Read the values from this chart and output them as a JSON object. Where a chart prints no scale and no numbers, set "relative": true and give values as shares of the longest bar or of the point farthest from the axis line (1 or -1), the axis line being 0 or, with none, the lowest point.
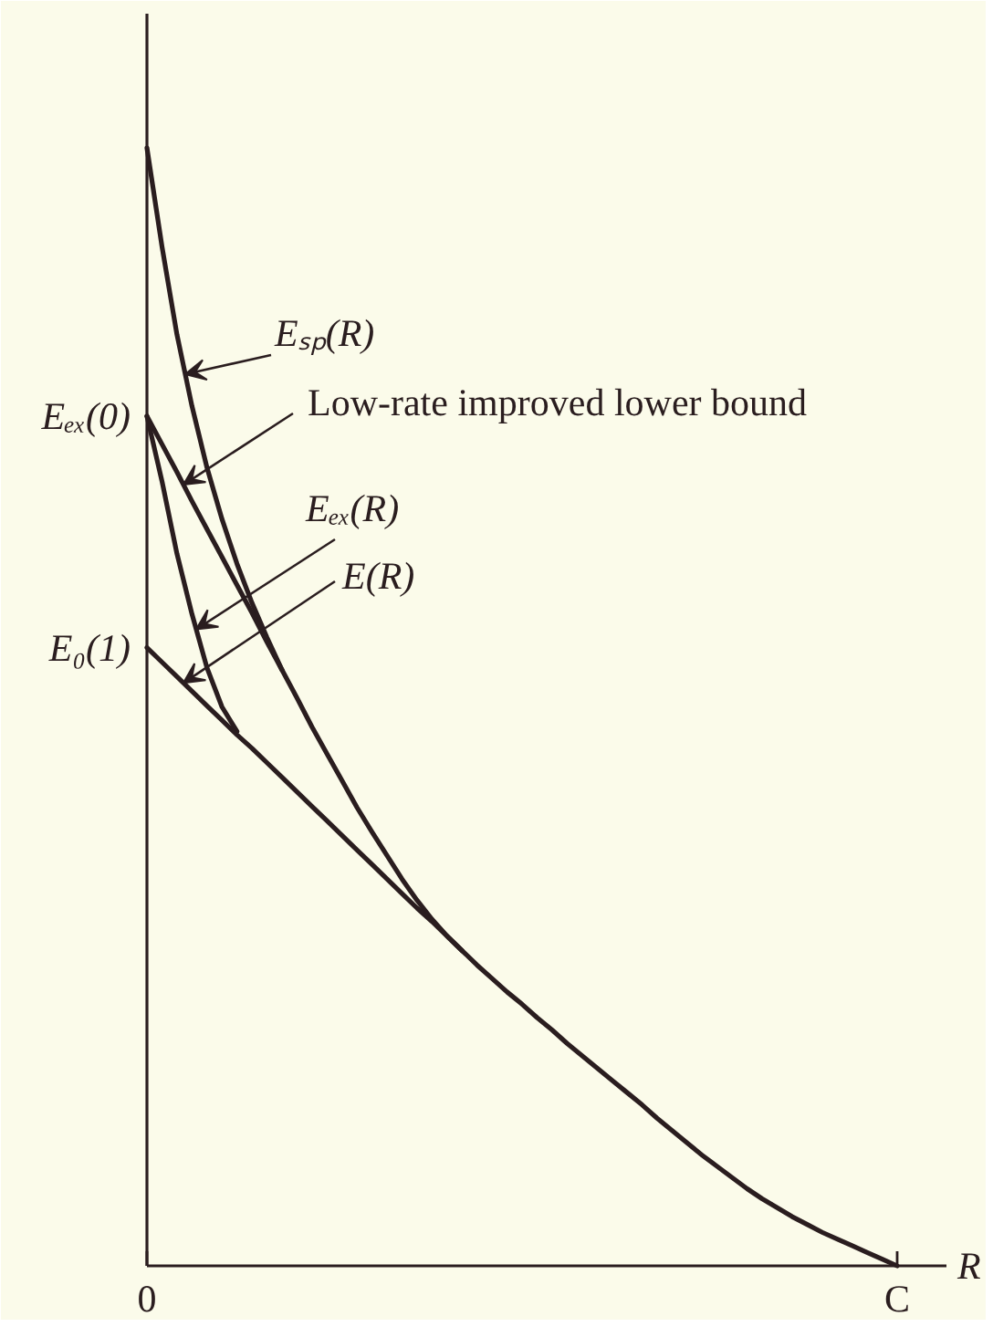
{
  "chart_data": {
    "type": "line",
    "relative": true,
    "xlabel": "R",
    "tick_labels": "x",
    "categories": [
      "0",
      null,
      null,
      null,
      null,
      null,
      null,
      null,
      null,
      null,
      null,
      null,
      null,
      null,
      null,
      null,
      null,
      null,
      null,
      null,
      null,
      null,
      null,
      null,
      null,
      null,
      null,
      null,
      null,
      null,
      null,
      null,
      null,
      null,
      null,
      null,
      null,
      null,
      null,
      null,
      null,
      null,
      null,
      null,
      null,
      null,
      null,
      null,
      null,
      null,
      "C"
    ],
    "series": [
      {
        "name": "Eₛₚ(R)",
        "color": "#2a1d1f",
        "values": [
          1.0,
          0.912,
          0.833,
          0.769,
          0.714,
          0.668,
          0.628,
          0.593,
          0.562,
          0.533,
          0.508,
          0.482,
          0.458,
          0.434,
          0.41,
          0.388,
          0.367,
          0.346,
          0.327,
          0.31,
          0.295,
          0.282,
          0.269,
          0.257,
          0.245,
          0.234,
          0.222,
          0.211,
          0.199,
          0.188,
          0.177,
          0.166,
          0.155,
          0.144,
          0.132,
          0.121,
          0.11,
          0.099,
          0.089,
          0.079,
          0.069,
          0.06,
          0.052,
          0.044,
          0.037,
          0.03,
          0.024,
          0.018,
          0.012,
          0.006,
          0
        ]
      },
      {
        "name": "Low-rate improved lower bound",
        "color": "#2a1d1f",
        "values": [
          0.76,
          0.735,
          0.71,
          0.684,
          0.659,
          0.634,
          0.609,
          0.584,
          0.558,
          0.533,
          null,
          null,
          null,
          null,
          null,
          null,
          null,
          null,
          null,
          null,
          null,
          null,
          null,
          null,
          null,
          null,
          null,
          null,
          null,
          null,
          null,
          null,
          null,
          null,
          null,
          null,
          null,
          null,
          null,
          null,
          null,
          null,
          null,
          null,
          null,
          null,
          null,
          null,
          null,
          null,
          null
        ]
      },
      {
        "name": "Eₑₓ(R)",
        "color": "#2a1d1f",
        "values": [
          0.76,
          0.702,
          0.637,
          0.583,
          0.535,
          0.5,
          0.478,
          null,
          null,
          null,
          null,
          null,
          null,
          null,
          null,
          null,
          null,
          null,
          null,
          null,
          null,
          null,
          null,
          null,
          null,
          null,
          null,
          null,
          null,
          null,
          null,
          null,
          null,
          null,
          null,
          null,
          null,
          null,
          null,
          null,
          null,
          null,
          null,
          null,
          null,
          null,
          null,
          null,
          null,
          null,
          null
        ]
      },
      {
        "name": "E(R)",
        "color": "#2a1d1f",
        "values": [
          0.553,
          0.54,
          0.527,
          0.514,
          0.501,
          0.488,
          0.475,
          0.463,
          0.45,
          0.437,
          0.424,
          0.411,
          0.398,
          0.385,
          0.372,
          0.359,
          0.346,
          0.333,
          0.32,
          0.308,
          0.295,
          0.282,
          null,
          null,
          null,
          null,
          null,
          null,
          null,
          null,
          null,
          null,
          null,
          null,
          null,
          null,
          null,
          null,
          null,
          null,
          null,
          null,
          null,
          null,
          null,
          null,
          null,
          null,
          null,
          null,
          null
        ]
      }
    ],
    "annotations": [
      {
        "text": "Eₑₓ(0)",
        "x": "0",
        "y": 0.76
      },
      {
        "text": "E₀(1)",
        "x": "0",
        "y": 0.553
      }
    ]
  }
}
